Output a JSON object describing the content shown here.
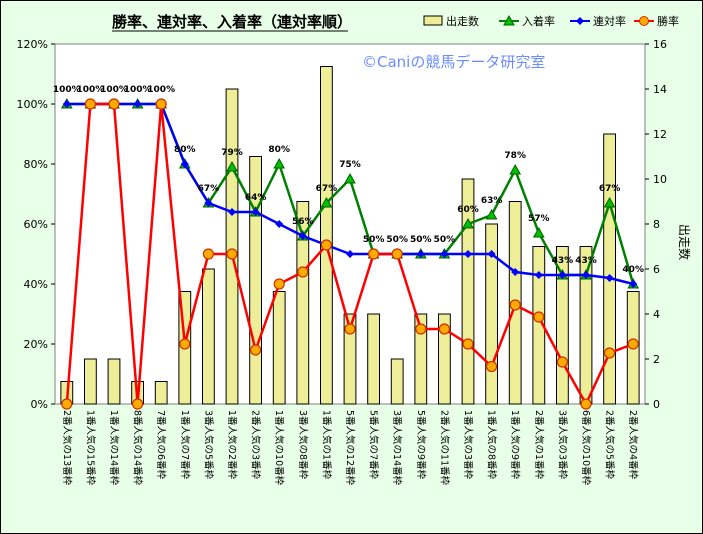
{
  "chart_data": {
    "type": "bar+line",
    "title": "勝率、連対率、入着率（連対率順）",
    "watermark": "©Caniの競馬データ研究室",
    "y2label": "出走数",
    "categories": [
      "2番人気の13番枠",
      "1番人気の15番枠",
      "1番人気の14番枠",
      "8番人気の14番枠",
      "7番人気の6番枠",
      "1番人気の7番枠",
      "3番人気の5番枠",
      "1番人気の2番枠",
      "2番人気の3番枠",
      "1番人気の10番枠",
      "3番人気の8番枠",
      "1番人気の1番枠",
      "5番人気の12番枠",
      "5番人気の7番枠",
      "3番人気の14番枠",
      "5番人気の9番枠",
      "2番人気の11番枠",
      "1番人気の3番枠",
      "1番人気の8番枠",
      "1番人気の9番枠",
      "2番人気の1番枠",
      "3番人気の3番枠",
      "6番人気の10番枠",
      "2番人気の5番枠",
      "2番人気の4番枠"
    ],
    "ylim": [
      0,
      1.2
    ],
    "yticks": [
      "0%",
      "20%",
      "40%",
      "60%",
      "80%",
      "100%",
      "120%"
    ],
    "y2lim": [
      0,
      16
    ],
    "y2ticks": [
      "0",
      "2",
      "4",
      "6",
      "8",
      "10",
      "12",
      "14",
      "16"
    ],
    "legend_position": "top-right",
    "grid": false,
    "series": [
      {
        "name": "出走数",
        "kind": "bar",
        "axis": "y2",
        "color": "#eeee99",
        "values": [
          1,
          2,
          2,
          1,
          1,
          5,
          6,
          14,
          11,
          5,
          9,
          15,
          4,
          4,
          2,
          4,
          4,
          10,
          8,
          9,
          7,
          7,
          7,
          12,
          5
        ]
      },
      {
        "name": "入着率",
        "kind": "line",
        "axis": "y",
        "color": "#008000",
        "values": [
          1,
          1,
          1,
          1,
          1,
          0.8,
          0.67,
          0.79,
          0.64,
          0.8,
          0.56,
          0.67,
          0.75,
          0.5,
          0.5,
          0.5,
          0.5,
          0.6,
          0.63,
          0.78,
          0.57,
          0.43,
          0.43,
          0.67,
          0.4
        ]
      },
      {
        "name": "連対率",
        "kind": "line",
        "axis": "y",
        "color": "#0000ff",
        "values": [
          1,
          1,
          1,
          1,
          1,
          0.8,
          0.67,
          0.64,
          0.64,
          0.6,
          0.56,
          0.53,
          0.5,
          0.5,
          0.5,
          0.5,
          0.5,
          0.5,
          0.5,
          0.44,
          0.43,
          0.43,
          0.43,
          0.42,
          0.4
        ]
      },
      {
        "name": "勝率",
        "kind": "line",
        "axis": "y",
        "color": "#ff0000",
        "values": [
          0,
          1,
          1,
          0,
          1,
          0.2,
          0.5,
          0.5,
          0.18,
          0.4,
          0.44,
          0.53,
          0.25,
          0.5,
          0.5,
          0.25,
          0.25,
          0.2,
          0.125,
          0.33,
          0.29,
          0.14,
          0,
          0.17,
          0.2
        ]
      }
    ],
    "data_labels": [
      "100%",
      "100%",
      "100%",
      "100%",
      "100%",
      "80%",
      "67%",
      "79%",
      "64%",
      "80%",
      "56%",
      "67%",
      "75%",
      "50%",
      "50%",
      "50%",
      "50%",
      "60%",
      "63%",
      "78%",
      "57%",
      "43%",
      "43%",
      "67%",
      "40%"
    ]
  }
}
